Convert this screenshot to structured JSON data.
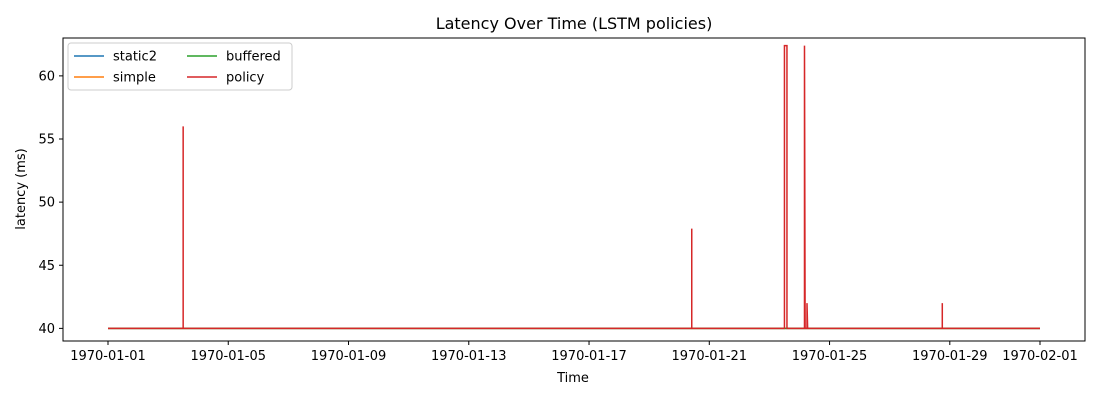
{
  "chart_data": {
    "type": "line",
    "title": "Latency Over Time (LSTM policies)",
    "xlabel": "Time",
    "ylabel": "latency (ms)",
    "x_type": "date",
    "xlim": [
      "1970-01-01",
      "1970-02-01"
    ],
    "ylim": [
      39.0,
      63.0
    ],
    "x_ticks": [
      "1970-01-01",
      "1970-01-05",
      "1970-01-09",
      "1970-01-13",
      "1970-01-17",
      "1970-01-21",
      "1970-01-25",
      "1970-01-29",
      "1970-02-01"
    ],
    "y_ticks": [
      40,
      45,
      50,
      55,
      60
    ],
    "grid": false,
    "legend_position": "top-left",
    "series": [
      {
        "name": "static2",
        "color": "#1f77b4",
        "points": [
          [
            "1970-01-01",
            40
          ],
          [
            "1970-02-01",
            40
          ]
        ]
      },
      {
        "name": "simple",
        "color": "#ff7f0e",
        "points": [
          [
            "1970-01-01",
            40
          ],
          [
            "1970-02-01",
            40
          ]
        ]
      },
      {
        "name": "buffered",
        "color": "#2ca02c",
        "points": [
          [
            "1970-01-01",
            40
          ],
          [
            "1970-02-01",
            40
          ]
        ]
      },
      {
        "name": "policy",
        "color": "#d62728",
        "points": [
          [
            "1970-01-01T00:00",
            40
          ],
          [
            "1970-01-03T12:00",
            40
          ],
          [
            "1970-01-03T12:00",
            56
          ],
          [
            "1970-01-03T12:00",
            40
          ],
          [
            "1970-01-20T10:00",
            40
          ],
          [
            "1970-01-20T10:00",
            47.9
          ],
          [
            "1970-01-20T10:00",
            40
          ],
          [
            "1970-01-23T12:00",
            40
          ],
          [
            "1970-01-23T12:00",
            62.4
          ],
          [
            "1970-01-23T14:00",
            62.4
          ],
          [
            "1970-01-23T14:00",
            40
          ],
          [
            "1970-01-24T04:00",
            40
          ],
          [
            "1970-01-24T04:00",
            62.4
          ],
          [
            "1970-01-24T04:30",
            40
          ],
          [
            "1970-01-24T06:00",
            40
          ],
          [
            "1970-01-24T06:00",
            42
          ],
          [
            "1970-01-24T06:30",
            40
          ],
          [
            "1970-01-28T18:00",
            40
          ],
          [
            "1970-01-28T18:00",
            42
          ],
          [
            "1970-01-28T18:00",
            40
          ],
          [
            "1970-02-01T00:00",
            40
          ]
        ]
      }
    ]
  }
}
